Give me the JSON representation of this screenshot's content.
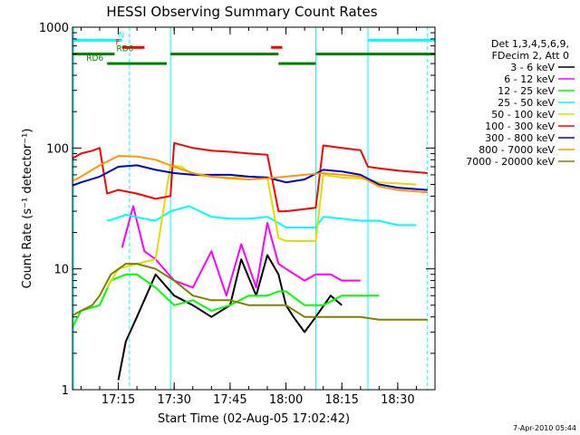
{
  "chart_data": {
    "type": "line",
    "title": "HESSI Observing Summary Count Rates",
    "xlabel": "Start Time (02-Aug-05 17:02:42)",
    "ylabel": "Count Rate (s⁻¹ detector⁻¹)",
    "y_scale": "log",
    "xlim": [
      "17:02:42",
      "18:40:00"
    ],
    "ylim": [
      1,
      1000
    ],
    "x_ticks": [
      "17:15",
      "17:30",
      "17:45",
      "18:00",
      "18:15",
      "18:30"
    ],
    "y_ticks": [
      "1",
      "10",
      "100",
      "1000"
    ],
    "footer": "7-Apr-2010 05:44",
    "legend_header": [
      "Det 1,3,4,5,6,9,",
      "FDecim 2, Att 0"
    ],
    "series": [
      {
        "name": "3 - 6 keV",
        "color": "#000000",
        "x": [
          "17:02",
          "17:12",
          "17:15",
          "17:17",
          "17:20",
          "17:25",
          "17:30",
          "17:35",
          "17:40",
          "17:45",
          "17:48",
          "17:52",
          "17:55",
          "17:58",
          "18:00",
          "18:02",
          "18:05",
          "18:08",
          "18:12",
          "18:15"
        ],
        "y": [
          null,
          null,
          1.2,
          2.5,
          4,
          9,
          6,
          5,
          4,
          5,
          12,
          6,
          13,
          9,
          5,
          4,
          3,
          4,
          6,
          5
        ]
      },
      {
        "name": "6 - 12 keV",
        "color": "#ff00ff",
        "x": [
          "17:02",
          "17:12",
          "17:16",
          "17:19",
          "17:22",
          "17:25",
          "17:30",
          "17:35",
          "17:40",
          "17:44",
          "17:48",
          "17:52",
          "17:55",
          "17:58",
          "18:00",
          "18:05",
          "18:08",
          "18:12",
          "18:15",
          "18:20"
        ],
        "y": [
          null,
          null,
          15,
          33,
          14,
          12,
          8,
          7,
          14,
          6,
          16,
          7,
          24,
          11,
          10,
          8,
          9,
          9,
          8,
          8
        ]
      },
      {
        "name": "12 - 25 keV",
        "color": "#00ff00",
        "x": [
          "17:02",
          "17:05",
          "17:10",
          "17:13",
          "17:17",
          "17:20",
          "17:25",
          "17:30",
          "17:35",
          "17:40",
          "17:45",
          "17:50",
          "17:55",
          "17:58",
          "18:00",
          "18:05",
          "18:10",
          "18:15",
          "18:20",
          "18:25"
        ],
        "y": [
          3,
          4.5,
          5,
          8,
          9,
          9,
          7,
          5,
          5.5,
          4.5,
          5,
          6,
          6,
          6.5,
          6.5,
          5,
          5,
          6,
          6,
          6
        ]
      },
      {
        "name": "25 - 50 keV",
        "color": "#00ffff",
        "x": [
          "17:12",
          "17:14",
          "17:17",
          "17:22",
          "17:25",
          "17:29",
          "17:34",
          "17:40",
          "17:45",
          "17:50",
          "17:55",
          "17:58",
          "18:00",
          "18:08",
          "18:10",
          "18:15",
          "18:20",
          "18:25",
          "18:30",
          "18:35"
        ],
        "y": [
          25,
          26,
          28,
          26,
          25,
          30,
          33,
          27,
          26,
          26,
          27,
          24,
          22,
          22,
          27,
          26,
          25,
          25,
          23,
          23
        ]
      },
      {
        "name": "50 - 100 keV",
        "color": "#dddd00",
        "x": [
          "17:12",
          "17:15",
          "17:20",
          "17:25",
          "17:29",
          "17:32",
          "17:35",
          "17:40",
          "17:45",
          "17:50",
          "17:55",
          "17:58",
          "18:00",
          "18:08",
          "18:10",
          "18:15",
          "18:20",
          "18:22",
          "18:25",
          "18:35"
        ],
        "y": [
          7,
          10,
          11,
          12,
          72,
          70,
          60,
          58,
          57,
          58,
          57,
          18,
          17,
          17,
          60,
          57,
          56,
          55,
          52,
          50
        ]
      },
      {
        "name": "100 - 300 keV",
        "color": "#ff0000",
        "x": [
          "17:02",
          "17:05",
          "17:08",
          "17:10",
          "17:12",
          "17:15",
          "17:20",
          "17:25",
          "17:29",
          "17:30",
          "17:35",
          "17:40",
          "17:45",
          "17:50",
          "17:55",
          "17:58",
          "18:00",
          "18:08",
          "18:10",
          "18:15",
          "18:20",
          "18:22",
          "18:25",
          "18:30",
          "18:38"
        ],
        "y": [
          80,
          90,
          95,
          100,
          42,
          45,
          42,
          38,
          40,
          110,
          100,
          95,
          93,
          90,
          88,
          30,
          30,
          32,
          105,
          100,
          96,
          70,
          68,
          65,
          62
        ]
      },
      {
        "name": "300 - 800 keV",
        "color": "#0000cc",
        "x": [
          "17:02",
          "17:05",
          "17:10",
          "17:15",
          "17:20",
          "17:25",
          "17:30",
          "17:35",
          "17:40",
          "17:45",
          "17:50",
          "17:55",
          "18:00",
          "18:05",
          "18:10",
          "18:15",
          "18:20",
          "18:25",
          "18:30",
          "18:38"
        ],
        "y": [
          48,
          52,
          58,
          70,
          72,
          66,
          62,
          60,
          60,
          60,
          58,
          57,
          52,
          55,
          66,
          64,
          60,
          50,
          47,
          45
        ]
      },
      {
        "name": "800 - 7000 keV",
        "color": "#ff9900",
        "x": [
          "17:02",
          "17:05",
          "17:10",
          "17:15",
          "17:20",
          "17:25",
          "17:30",
          "17:35",
          "17:40",
          "17:45",
          "17:50",
          "17:55",
          "18:00",
          "18:05",
          "18:10",
          "18:15",
          "18:20",
          "18:25",
          "18:30",
          "18:38"
        ],
        "y": [
          52,
          58,
          72,
          86,
          85,
          80,
          70,
          62,
          58,
          56,
          55,
          56,
          58,
          60,
          62,
          60,
          58,
          48,
          45,
          43
        ]
      },
      {
        "name": "7000 - 20000 keV",
        "color": "#808000",
        "x": [
          "17:02",
          "17:05",
          "17:08",
          "17:10",
          "17:13",
          "17:17",
          "17:20",
          "17:25",
          "17:30",
          "17:35",
          "17:40",
          "17:45",
          "17:50",
          "17:55",
          "18:00",
          "18:05",
          "18:10",
          "18:15",
          "18:20",
          "18:25",
          "18:30",
          "18:38"
        ],
        "y": [
          4,
          4.5,
          5,
          6,
          9,
          11,
          11,
          10,
          8,
          6,
          5.5,
          5.5,
          5,
          5,
          5,
          4,
          4,
          4,
          4,
          3.8,
          3.8,
          3.8
        ]
      }
    ],
    "annotations": [
      {
        "label": "N",
        "color": "#00ffff",
        "segments": [
          [
            "17:03",
            "17:16"
          ],
          [
            "18:22",
            "18:40"
          ]
        ],
        "level": 780
      },
      {
        "label": "F",
        "color": "#ff0000",
        "segments": [
          [
            "17:16",
            "17:22"
          ],
          [
            "17:56",
            "17:59"
          ]
        ],
        "level": 680
      },
      {
        "label": "RD0",
        "color": "#008000",
        "segments": [
          [
            "17:02",
            "17:14"
          ],
          [
            "17:29",
            "17:58"
          ],
          [
            "18:08",
            "18:40"
          ]
        ],
        "level": 600
      },
      {
        "label": "RD6",
        "color": "#008000",
        "segments": [
          [
            "17:12",
            "17:28"
          ],
          [
            "17:58",
            "18:08"
          ]
        ],
        "level": 500
      }
    ],
    "vertical_lines": [
      {
        "x": "17:03",
        "color": "#00ffff",
        "style": "solid"
      },
      {
        "x": "17:18",
        "color": "#00ffff",
        "style": "dashed"
      },
      {
        "x": "17:29",
        "color": "#00ffff",
        "style": "solid"
      },
      {
        "x": "18:08",
        "color": "#00ffff",
        "style": "solid"
      },
      {
        "x": "18:22",
        "color": "#00ffff",
        "style": "solid"
      },
      {
        "x": "18:38",
        "color": "#00ffff",
        "style": "dashed"
      }
    ]
  }
}
